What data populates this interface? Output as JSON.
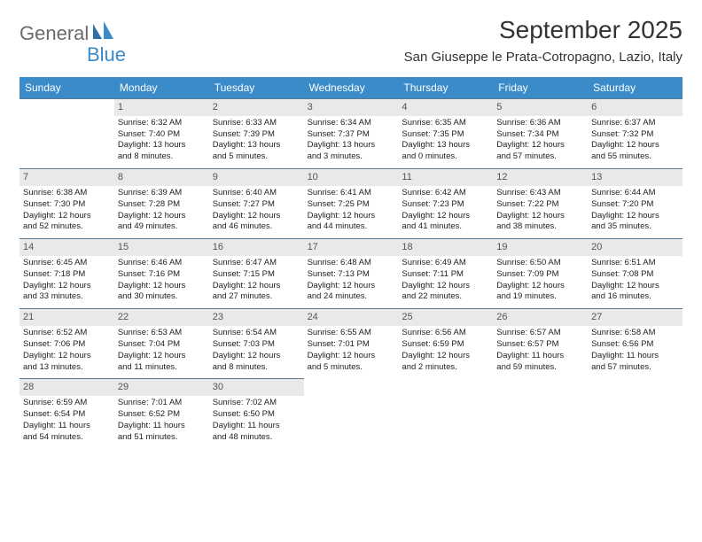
{
  "logo": {
    "part1": "General",
    "part2": "Blue"
  },
  "title": "September 2025",
  "location": "San Giuseppe le Prata-Cotropagno, Lazio, Italy",
  "colors": {
    "header_bg": "#3a8bc8",
    "daynum_bg": "#e9e9e9",
    "border": "#5a7a94",
    "text": "#222222",
    "logo_gray": "#6b6b6b",
    "logo_blue": "#3a8bc8"
  },
  "fonts": {
    "title_size": 28,
    "location_size": 15,
    "head_size": 12,
    "cell_size": 9.5,
    "daynum_size": 11
  },
  "weekdays": [
    "Sunday",
    "Monday",
    "Tuesday",
    "Wednesday",
    "Thursday",
    "Friday",
    "Saturday"
  ],
  "weeks": [
    [
      null,
      {
        "day": "1",
        "sunrise": "Sunrise: 6:32 AM",
        "sunset": "Sunset: 7:40 PM",
        "dl1": "Daylight: 13 hours",
        "dl2": "and 8 minutes."
      },
      {
        "day": "2",
        "sunrise": "Sunrise: 6:33 AM",
        "sunset": "Sunset: 7:39 PM",
        "dl1": "Daylight: 13 hours",
        "dl2": "and 5 minutes."
      },
      {
        "day": "3",
        "sunrise": "Sunrise: 6:34 AM",
        "sunset": "Sunset: 7:37 PM",
        "dl1": "Daylight: 13 hours",
        "dl2": "and 3 minutes."
      },
      {
        "day": "4",
        "sunrise": "Sunrise: 6:35 AM",
        "sunset": "Sunset: 7:35 PM",
        "dl1": "Daylight: 13 hours",
        "dl2": "and 0 minutes."
      },
      {
        "day": "5",
        "sunrise": "Sunrise: 6:36 AM",
        "sunset": "Sunset: 7:34 PM",
        "dl1": "Daylight: 12 hours",
        "dl2": "and 57 minutes."
      },
      {
        "day": "6",
        "sunrise": "Sunrise: 6:37 AM",
        "sunset": "Sunset: 7:32 PM",
        "dl1": "Daylight: 12 hours",
        "dl2": "and 55 minutes."
      }
    ],
    [
      {
        "day": "7",
        "sunrise": "Sunrise: 6:38 AM",
        "sunset": "Sunset: 7:30 PM",
        "dl1": "Daylight: 12 hours",
        "dl2": "and 52 minutes."
      },
      {
        "day": "8",
        "sunrise": "Sunrise: 6:39 AM",
        "sunset": "Sunset: 7:28 PM",
        "dl1": "Daylight: 12 hours",
        "dl2": "and 49 minutes."
      },
      {
        "day": "9",
        "sunrise": "Sunrise: 6:40 AM",
        "sunset": "Sunset: 7:27 PM",
        "dl1": "Daylight: 12 hours",
        "dl2": "and 46 minutes."
      },
      {
        "day": "10",
        "sunrise": "Sunrise: 6:41 AM",
        "sunset": "Sunset: 7:25 PM",
        "dl1": "Daylight: 12 hours",
        "dl2": "and 44 minutes."
      },
      {
        "day": "11",
        "sunrise": "Sunrise: 6:42 AM",
        "sunset": "Sunset: 7:23 PM",
        "dl1": "Daylight: 12 hours",
        "dl2": "and 41 minutes."
      },
      {
        "day": "12",
        "sunrise": "Sunrise: 6:43 AM",
        "sunset": "Sunset: 7:22 PM",
        "dl1": "Daylight: 12 hours",
        "dl2": "and 38 minutes."
      },
      {
        "day": "13",
        "sunrise": "Sunrise: 6:44 AM",
        "sunset": "Sunset: 7:20 PM",
        "dl1": "Daylight: 12 hours",
        "dl2": "and 35 minutes."
      }
    ],
    [
      {
        "day": "14",
        "sunrise": "Sunrise: 6:45 AM",
        "sunset": "Sunset: 7:18 PM",
        "dl1": "Daylight: 12 hours",
        "dl2": "and 33 minutes."
      },
      {
        "day": "15",
        "sunrise": "Sunrise: 6:46 AM",
        "sunset": "Sunset: 7:16 PM",
        "dl1": "Daylight: 12 hours",
        "dl2": "and 30 minutes."
      },
      {
        "day": "16",
        "sunrise": "Sunrise: 6:47 AM",
        "sunset": "Sunset: 7:15 PM",
        "dl1": "Daylight: 12 hours",
        "dl2": "and 27 minutes."
      },
      {
        "day": "17",
        "sunrise": "Sunrise: 6:48 AM",
        "sunset": "Sunset: 7:13 PM",
        "dl1": "Daylight: 12 hours",
        "dl2": "and 24 minutes."
      },
      {
        "day": "18",
        "sunrise": "Sunrise: 6:49 AM",
        "sunset": "Sunset: 7:11 PM",
        "dl1": "Daylight: 12 hours",
        "dl2": "and 22 minutes."
      },
      {
        "day": "19",
        "sunrise": "Sunrise: 6:50 AM",
        "sunset": "Sunset: 7:09 PM",
        "dl1": "Daylight: 12 hours",
        "dl2": "and 19 minutes."
      },
      {
        "day": "20",
        "sunrise": "Sunrise: 6:51 AM",
        "sunset": "Sunset: 7:08 PM",
        "dl1": "Daylight: 12 hours",
        "dl2": "and 16 minutes."
      }
    ],
    [
      {
        "day": "21",
        "sunrise": "Sunrise: 6:52 AM",
        "sunset": "Sunset: 7:06 PM",
        "dl1": "Daylight: 12 hours",
        "dl2": "and 13 minutes."
      },
      {
        "day": "22",
        "sunrise": "Sunrise: 6:53 AM",
        "sunset": "Sunset: 7:04 PM",
        "dl1": "Daylight: 12 hours",
        "dl2": "and 11 minutes."
      },
      {
        "day": "23",
        "sunrise": "Sunrise: 6:54 AM",
        "sunset": "Sunset: 7:03 PM",
        "dl1": "Daylight: 12 hours",
        "dl2": "and 8 minutes."
      },
      {
        "day": "24",
        "sunrise": "Sunrise: 6:55 AM",
        "sunset": "Sunset: 7:01 PM",
        "dl1": "Daylight: 12 hours",
        "dl2": "and 5 minutes."
      },
      {
        "day": "25",
        "sunrise": "Sunrise: 6:56 AM",
        "sunset": "Sunset: 6:59 PM",
        "dl1": "Daylight: 12 hours",
        "dl2": "and 2 minutes."
      },
      {
        "day": "26",
        "sunrise": "Sunrise: 6:57 AM",
        "sunset": "Sunset: 6:57 PM",
        "dl1": "Daylight: 11 hours",
        "dl2": "and 59 minutes."
      },
      {
        "day": "27",
        "sunrise": "Sunrise: 6:58 AM",
        "sunset": "Sunset: 6:56 PM",
        "dl1": "Daylight: 11 hours",
        "dl2": "and 57 minutes."
      }
    ],
    [
      {
        "day": "28",
        "sunrise": "Sunrise: 6:59 AM",
        "sunset": "Sunset: 6:54 PM",
        "dl1": "Daylight: 11 hours",
        "dl2": "and 54 minutes."
      },
      {
        "day": "29",
        "sunrise": "Sunrise: 7:01 AM",
        "sunset": "Sunset: 6:52 PM",
        "dl1": "Daylight: 11 hours",
        "dl2": "and 51 minutes."
      },
      {
        "day": "30",
        "sunrise": "Sunrise: 7:02 AM",
        "sunset": "Sunset: 6:50 PM",
        "dl1": "Daylight: 11 hours",
        "dl2": "and 48 minutes."
      },
      null,
      null,
      null,
      null
    ]
  ]
}
